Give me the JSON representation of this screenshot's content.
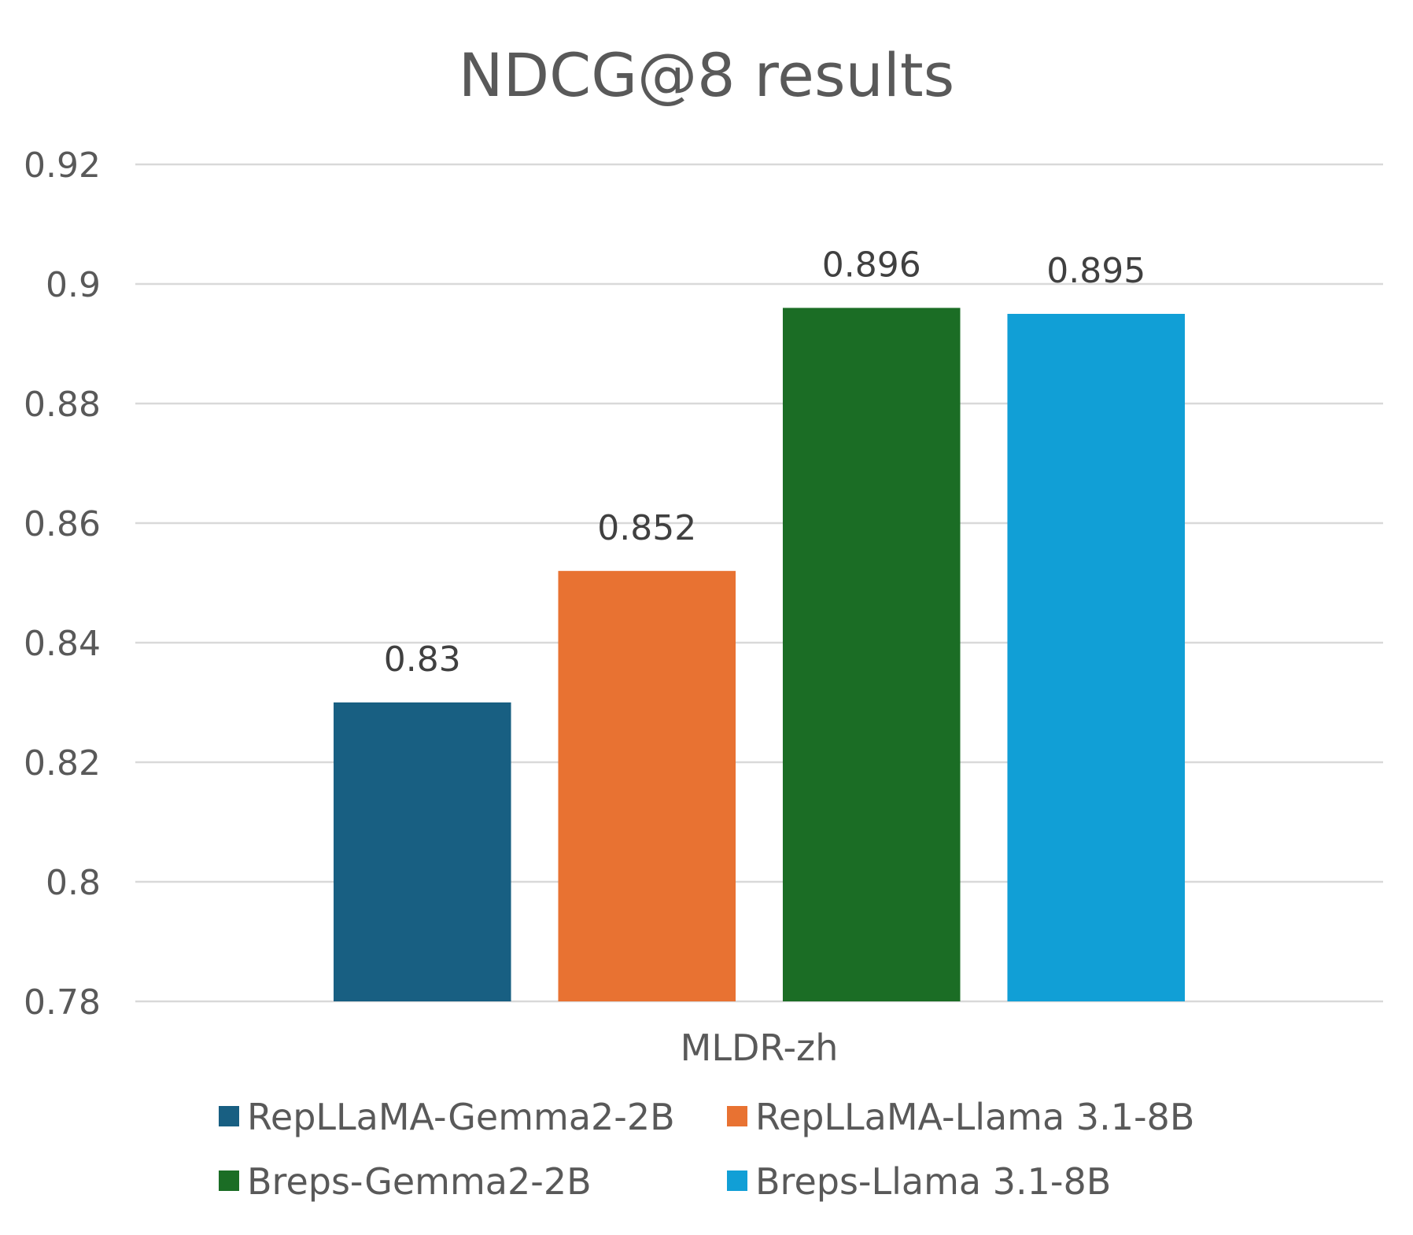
{
  "chart_data": {
    "type": "bar",
    "title": "NDCG@8 results",
    "categories": [
      "MLDR-zh"
    ],
    "series": [
      {
        "name": "RepLLaMA-Gemma2-2B",
        "values": [
          0.83
        ],
        "color": "#185f82"
      },
      {
        "name": "RepLLaMA-Llama 3.1-8B",
        "values": [
          0.852
        ],
        "color": "#e87232"
      },
      {
        "name": "Breps-Gemma2-2B",
        "values": [
          0.896
        ],
        "color": "#1b6d25"
      },
      {
        "name": "Breps-Llama 3.1-8B",
        "values": [
          0.895
        ],
        "color": "#119fd6"
      }
    ],
    "data_labels": [
      "0.83",
      "0.852",
      "0.896",
      "0.895"
    ],
    "ylim": [
      0.78,
      0.92
    ],
    "yticks": [
      0.78,
      0.8,
      0.82,
      0.84,
      0.86,
      0.88,
      0.9,
      0.92
    ],
    "ytick_labels": [
      "0.78",
      "0.8",
      "0.82",
      "0.84",
      "0.86",
      "0.88",
      "0.9",
      "0.92"
    ],
    "xlabel": "",
    "ylabel": "",
    "grid": true,
    "legend_position": "bottom"
  }
}
